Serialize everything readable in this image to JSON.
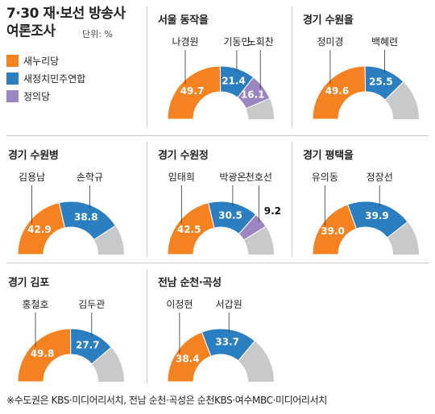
{
  "header": {
    "title_line1": "7·30 재·보선 방송사",
    "title_line2": "여론조사",
    "unit": "단위: %"
  },
  "legend": [
    {
      "label": "새누리당",
      "color": "#f58220"
    },
    {
      "label": "새정치민주연합",
      "color": "#2b7fc0"
    },
    {
      "label": "정의당",
      "color": "#9b86c2"
    }
  ],
  "colors": {
    "remainder": "#c8c9cb",
    "label_text": "#ffffff",
    "outside_label_text": "#111111"
  },
  "footnote": "※수도권은 KBS·미디어리서치, 전남 순천·곡성은 순천KBS·여수MBC·미디어리서치",
  "chart_data": [
    {
      "type": "pie",
      "title": "서울 동작을",
      "categories": [
        "나경원",
        "기동민",
        "노회찬"
      ],
      "values": [
        49.7,
        21.4,
        16.1
      ]
    },
    {
      "type": "pie",
      "title": "경기 수원을",
      "categories": [
        "정미경",
        "백혜련"
      ],
      "values": [
        49.6,
        25.5
      ]
    },
    {
      "type": "pie",
      "title": "경기 수원병",
      "categories": [
        "김용남",
        "손학규"
      ],
      "values": [
        42.9,
        38.8
      ]
    },
    {
      "type": "pie",
      "title": "경기 수원정",
      "categories": [
        "임태희",
        "박광온",
        "천호선"
      ],
      "values": [
        42.5,
        30.5,
        9.2
      ]
    },
    {
      "type": "pie",
      "title": "경기 평택을",
      "categories": [
        "유의동",
        "정장선"
      ],
      "values": [
        39.0,
        39.9
      ]
    },
    {
      "type": "pie",
      "title": "경기 김포",
      "categories": [
        "홍철호",
        "김두관"
      ],
      "values": [
        49.8,
        27.7
      ]
    },
    {
      "type": "pie",
      "title": "전남 순천·곡성",
      "categories": [
        "이정현",
        "서갑원"
      ],
      "values": [
        38.4,
        33.7
      ]
    }
  ]
}
